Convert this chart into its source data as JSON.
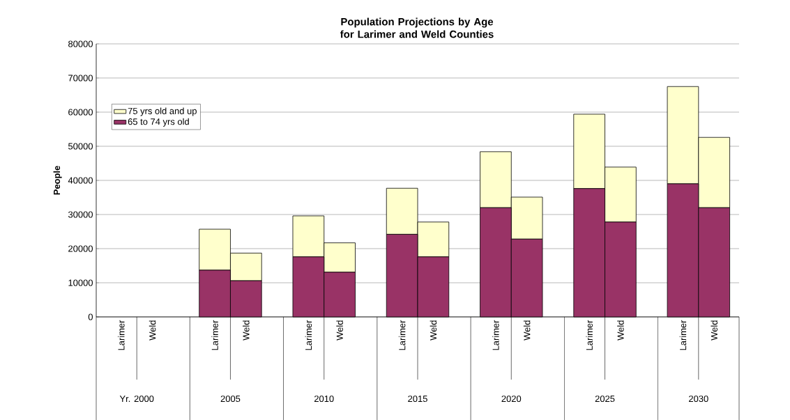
{
  "chart_data": {
    "type": "bar",
    "title": "Population Projections by Age for Larimer and Weld Counties",
    "ylabel": "People",
    "categories": [
      "Larimer",
      "Weld",
      "Larimer",
      "Weld",
      "Larimer",
      "Weld",
      "Larimer",
      "Weld",
      "Larimer",
      "Weld",
      "Larimer",
      "Weld",
      "Larimer",
      "Weld"
    ],
    "annotations": [
      "Yr. 2000",
      "2005",
      "2010",
      "2015",
      "2020",
      "2025",
      "2030"
    ],
    "stacked": true,
    "series": [
      {
        "name": "65 to 74 yrs old",
        "color": "#993366",
        "values": [
          null,
          null,
          13700,
          10600,
          17600,
          13100,
          24200,
          17600,
          32000,
          22800,
          37600,
          27800,
          39000,
          32000
        ]
      },
      {
        "name": "75 yrs old and up",
        "color": "#ffffcc",
        "values": [
          null,
          null,
          12000,
          8100,
          12000,
          8600,
          13500,
          10200,
          16400,
          12300,
          21800,
          16100,
          28500,
          20600
        ]
      }
    ],
    "ylim": [
      0,
      80000
    ],
    "yticks": [
      0,
      10000,
      20000,
      30000,
      40000,
      50000,
      60000,
      70000,
      80000
    ],
    "grid": "y",
    "legend": "top left"
  }
}
